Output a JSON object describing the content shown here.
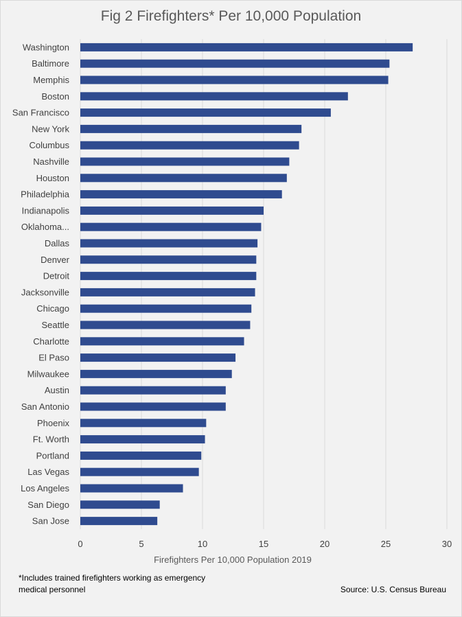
{
  "chart_data": {
    "type": "bar",
    "orientation": "horizontal",
    "title": "Fig 2 Firefighters* Per 10,000 Population",
    "xlabel": "Firefighters Per 10,000 Population 2019",
    "ylabel": "",
    "xlim": [
      0,
      30
    ],
    "xticks": [
      0,
      5,
      10,
      15,
      20,
      25,
      30
    ],
    "grid": true,
    "bar_color": "#2f4b8f",
    "categories": [
      "Washington",
      "Baltimore",
      "Memphis",
      "Boston",
      "San Francisco",
      "New York",
      "Columbus",
      "Nashville",
      "Houston",
      "Philadelphia",
      "Indianapolis",
      "Oklahoma...",
      "Dallas",
      "Denver",
      "Detroit",
      "Jacksonville",
      "Chicago",
      "Seattle",
      "Charlotte",
      "El Paso",
      "Milwaukee",
      "Austin",
      "San Antonio",
      "Phoenix",
      "Ft. Worth",
      "Portland",
      "Las Vegas",
      "Los Angeles",
      "San Diego",
      "San Jose"
    ],
    "values": [
      27.2,
      25.3,
      25.2,
      21.9,
      20.5,
      18.1,
      17.9,
      17.1,
      16.9,
      16.5,
      15.0,
      14.8,
      14.5,
      14.4,
      14.4,
      14.3,
      14.0,
      13.9,
      13.4,
      12.7,
      12.4,
      11.9,
      11.9,
      10.3,
      10.2,
      9.9,
      9.7,
      8.4,
      6.5,
      6.3
    ]
  },
  "footnote": "*Includes trained firefighters working as emergency medical personnel",
  "source": "Source: U.S. Census Bureau"
}
